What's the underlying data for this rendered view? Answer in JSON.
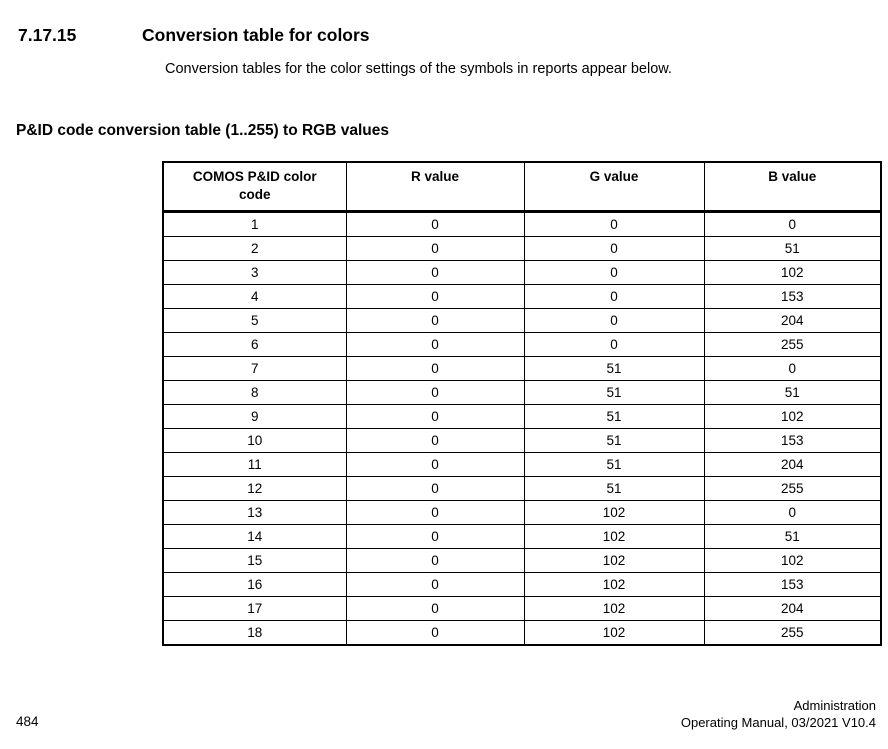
{
  "section": {
    "number": "7.17.15",
    "title": "Conversion table for colors",
    "intro": "Conversion tables for the color settings of the symbols in reports appear below."
  },
  "table_heading": "P&ID code conversion table (1..255) to RGB values",
  "table": {
    "columns": [
      "COMOS P&ID color code",
      "R value",
      "G value",
      "B value"
    ],
    "rows": [
      [
        "1",
        "0",
        "0",
        "0"
      ],
      [
        "2",
        "0",
        "0",
        "51"
      ],
      [
        "3",
        "0",
        "0",
        "102"
      ],
      [
        "4",
        "0",
        "0",
        "153"
      ],
      [
        "5",
        "0",
        "0",
        "204"
      ],
      [
        "6",
        "0",
        "0",
        "255"
      ],
      [
        "7",
        "0",
        "51",
        "0"
      ],
      [
        "8",
        "0",
        "51",
        "51"
      ],
      [
        "9",
        "0",
        "51",
        "102"
      ],
      [
        "10",
        "0",
        "51",
        "153"
      ],
      [
        "11",
        "0",
        "51",
        "204"
      ],
      [
        "12",
        "0",
        "51",
        "255"
      ],
      [
        "13",
        "0",
        "102",
        "0"
      ],
      [
        "14",
        "0",
        "102",
        "51"
      ],
      [
        "15",
        "0",
        "102",
        "102"
      ],
      [
        "16",
        "0",
        "102",
        "153"
      ],
      [
        "17",
        "0",
        "102",
        "204"
      ],
      [
        "18",
        "0",
        "102",
        "255"
      ]
    ]
  },
  "footer": {
    "page_number": "484",
    "doc_section": "Administration",
    "doc_info": "Operating Manual, 03/2021 V10.4"
  },
  "colors": {
    "text": "#000000",
    "background": "#ffffff",
    "table_border": "#000000"
  }
}
